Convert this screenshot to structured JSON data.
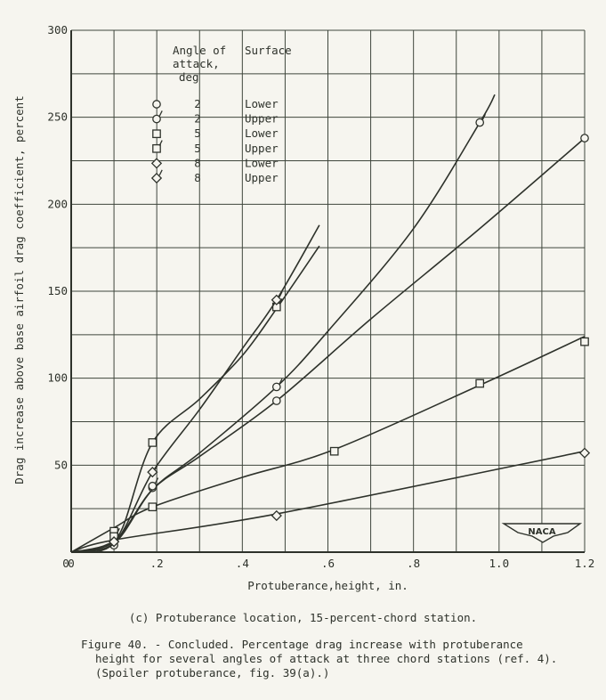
{
  "chart_data": {
    "type": "line",
    "title": "",
    "xlabel": "Protuberance,height, in.",
    "ylabel": "Drag increase above base airfoil drag coefficient, percent",
    "xlim": [
      0,
      1.2
    ],
    "ylim": [
      0,
      300
    ],
    "x_ticks": [
      "0",
      ".2",
      ".4",
      ".6",
      ".8",
      "1.0",
      "1.2"
    ],
    "y_ticks": [
      "50",
      "100",
      "150",
      "200",
      "250",
      "300"
    ],
    "grid": true,
    "grid_x_step": 0.1,
    "grid_y_step": 25,
    "legend": {
      "position": "upper-left",
      "headers": [
        "Angle of attack, deg",
        "Surface"
      ],
      "entries": [
        {
          "symbol": "circle",
          "angle": "2",
          "surface": "Lower"
        },
        {
          "symbol": "circle-flag",
          "angle": "2",
          "surface": "Upper"
        },
        {
          "symbol": "square",
          "angle": "5",
          "surface": "Lower"
        },
        {
          "symbol": "square-flag",
          "angle": "5",
          "surface": "Upper"
        },
        {
          "symbol": "diamond",
          "angle": "8",
          "surface": "Lower"
        },
        {
          "symbol": "diamond-flag",
          "angle": "8",
          "surface": "Upper"
        }
      ]
    },
    "series": [
      {
        "name": "2 deg, Lower",
        "symbol": "circle",
        "points": [
          [
            0.1,
            4
          ],
          [
            0.19,
            37
          ],
          [
            0.48,
            87
          ],
          [
            1.2,
            238
          ]
        ],
        "curve": [
          [
            0,
            0
          ],
          [
            0.1,
            6
          ],
          [
            0.19,
            36
          ],
          [
            0.3,
            55
          ],
          [
            0.48,
            87
          ],
          [
            0.7,
            134
          ],
          [
            0.95,
            185
          ],
          [
            1.2,
            238
          ]
        ]
      },
      {
        "name": "2 deg, Upper",
        "symbol": "circle-flag",
        "points": [
          [
            0.19,
            38
          ],
          [
            0.48,
            95
          ],
          [
            0.955,
            247
          ]
        ],
        "curve": [
          [
            0,
            0
          ],
          [
            0.1,
            5
          ],
          [
            0.19,
            36
          ],
          [
            0.3,
            57
          ],
          [
            0.48,
            95
          ],
          [
            0.6,
            127
          ],
          [
            0.8,
            186
          ],
          [
            0.955,
            247
          ],
          [
            0.99,
            263
          ]
        ]
      },
      {
        "name": "5 deg, Lower",
        "symbol": "square",
        "points": [
          [
            0.1,
            12
          ],
          [
            0.19,
            26
          ],
          [
            0.615,
            58
          ],
          [
            0.955,
            97
          ],
          [
            1.2,
            121
          ]
        ],
        "curve": [
          [
            0,
            0
          ],
          [
            0.1,
            14
          ],
          [
            0.19,
            26
          ],
          [
            0.4,
            43
          ],
          [
            0.615,
            59
          ],
          [
            0.955,
            96
          ],
          [
            1.2,
            124
          ]
        ]
      },
      {
        "name": "5 deg, Upper",
        "symbol": "square-flag",
        "points": [
          [
            0.1,
            9
          ],
          [
            0.19,
            63
          ],
          [
            0.48,
            141
          ]
        ],
        "curve": [
          [
            0,
            0
          ],
          [
            0.08,
            4
          ],
          [
            0.12,
            14
          ],
          [
            0.19,
            63
          ],
          [
            0.3,
            88
          ],
          [
            0.4,
            113
          ],
          [
            0.48,
            140
          ],
          [
            0.58,
            176
          ]
        ]
      },
      {
        "name": "8 deg, Lower",
        "symbol": "diamond",
        "points": [
          [
            0.1,
            6
          ],
          [
            0.48,
            21
          ],
          [
            1.2,
            57
          ]
        ],
        "curve": [
          [
            0,
            0
          ],
          [
            0.1,
            7
          ],
          [
            0.48,
            22
          ],
          [
            1.2,
            58
          ]
        ]
      },
      {
        "name": "8 deg, Upper",
        "symbol": "diamond-flag",
        "points": [
          [
            0.1,
            6
          ],
          [
            0.19,
            46
          ],
          [
            0.48,
            145
          ]
        ],
        "curve": [
          [
            0,
            0
          ],
          [
            0.1,
            5
          ],
          [
            0.19,
            46
          ],
          [
            0.3,
            82
          ],
          [
            0.4,
            117
          ],
          [
            0.48,
            145
          ],
          [
            0.58,
            188
          ]
        ]
      }
    ],
    "annotations": [
      "NACA"
    ]
  },
  "labels": {
    "ylabel": "Drag increase above base airfoil drag coefficient, percent",
    "xlabel": "Protuberance,height, in.",
    "legend_header_angle": [
      "Angle of",
      "attack,",
      "deg"
    ],
    "legend_header_surface": "Surface",
    "logo": "NACA",
    "subcaption": "(c) Protuberance location, 15-percent-chord station.",
    "caption_lines": [
      "Figure 40. - Concluded.  Percentage drag increase with protuberance",
      "height for several angles of attack at three chord stations (ref. 4).",
      "(Spoiler protuberance, fig. 39(a).)"
    ]
  },
  "style": {
    "ink": "#2e322b",
    "grid": "#3f463c",
    "paper": "#f6f5ef"
  }
}
